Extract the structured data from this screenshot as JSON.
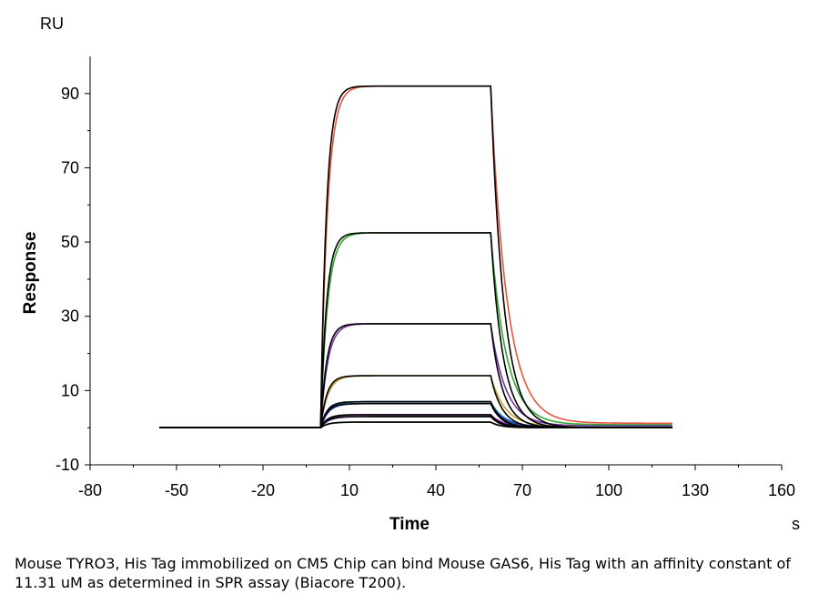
{
  "caption": "Mouse TYRO3, His Tag immobilized on CM5 Chip can bind Mouse GAS6, His Tag with an affinity constant of 11.31 uM as determined in SPR assay (Biacore T200).",
  "chart_data": {
    "type": "line",
    "title": "",
    "xlabel": "Time",
    "ylabel": "Response",
    "x_unit": "s",
    "y_unit": "RU",
    "xlim": [
      -80,
      160
    ],
    "ylim": [
      -10,
      100
    ],
    "x_ticks": [
      -80,
      -50,
      -20,
      10,
      40,
      70,
      100,
      130,
      160
    ],
    "y_ticks": [
      -10,
      10,
      30,
      50,
      70,
      90
    ],
    "grid": false,
    "legend": "none",
    "baseline_start": -56,
    "association_start": 0,
    "dissociation_start": 59,
    "end_time": 122,
    "fit_color": "#000000",
    "series": [
      {
        "color": "#E8553A",
        "plateau": 92,
        "tail": 1.2
      },
      {
        "color": "#2FAA2F",
        "plateau": 52.5,
        "tail": 0.8
      },
      {
        "color": "#7A2FA8",
        "plateau": 28,
        "tail": 0.5
      },
      {
        "color": "#C8A02A",
        "plateau": 14,
        "tail": 0.3
      },
      {
        "color": "#22A8C8",
        "plateau": 7,
        "tail": 0.2
      },
      {
        "color": "#1F3FBF",
        "plateau": 6.5,
        "tail": 0.2
      },
      {
        "color": "#C828B4",
        "plateau": 3.5,
        "tail": 0.1
      },
      {
        "color": "#3333AA",
        "plateau": 3.0,
        "tail": 0.1
      },
      {
        "color": "#888888",
        "plateau": 1.5,
        "tail": 0.0
      }
    ]
  }
}
